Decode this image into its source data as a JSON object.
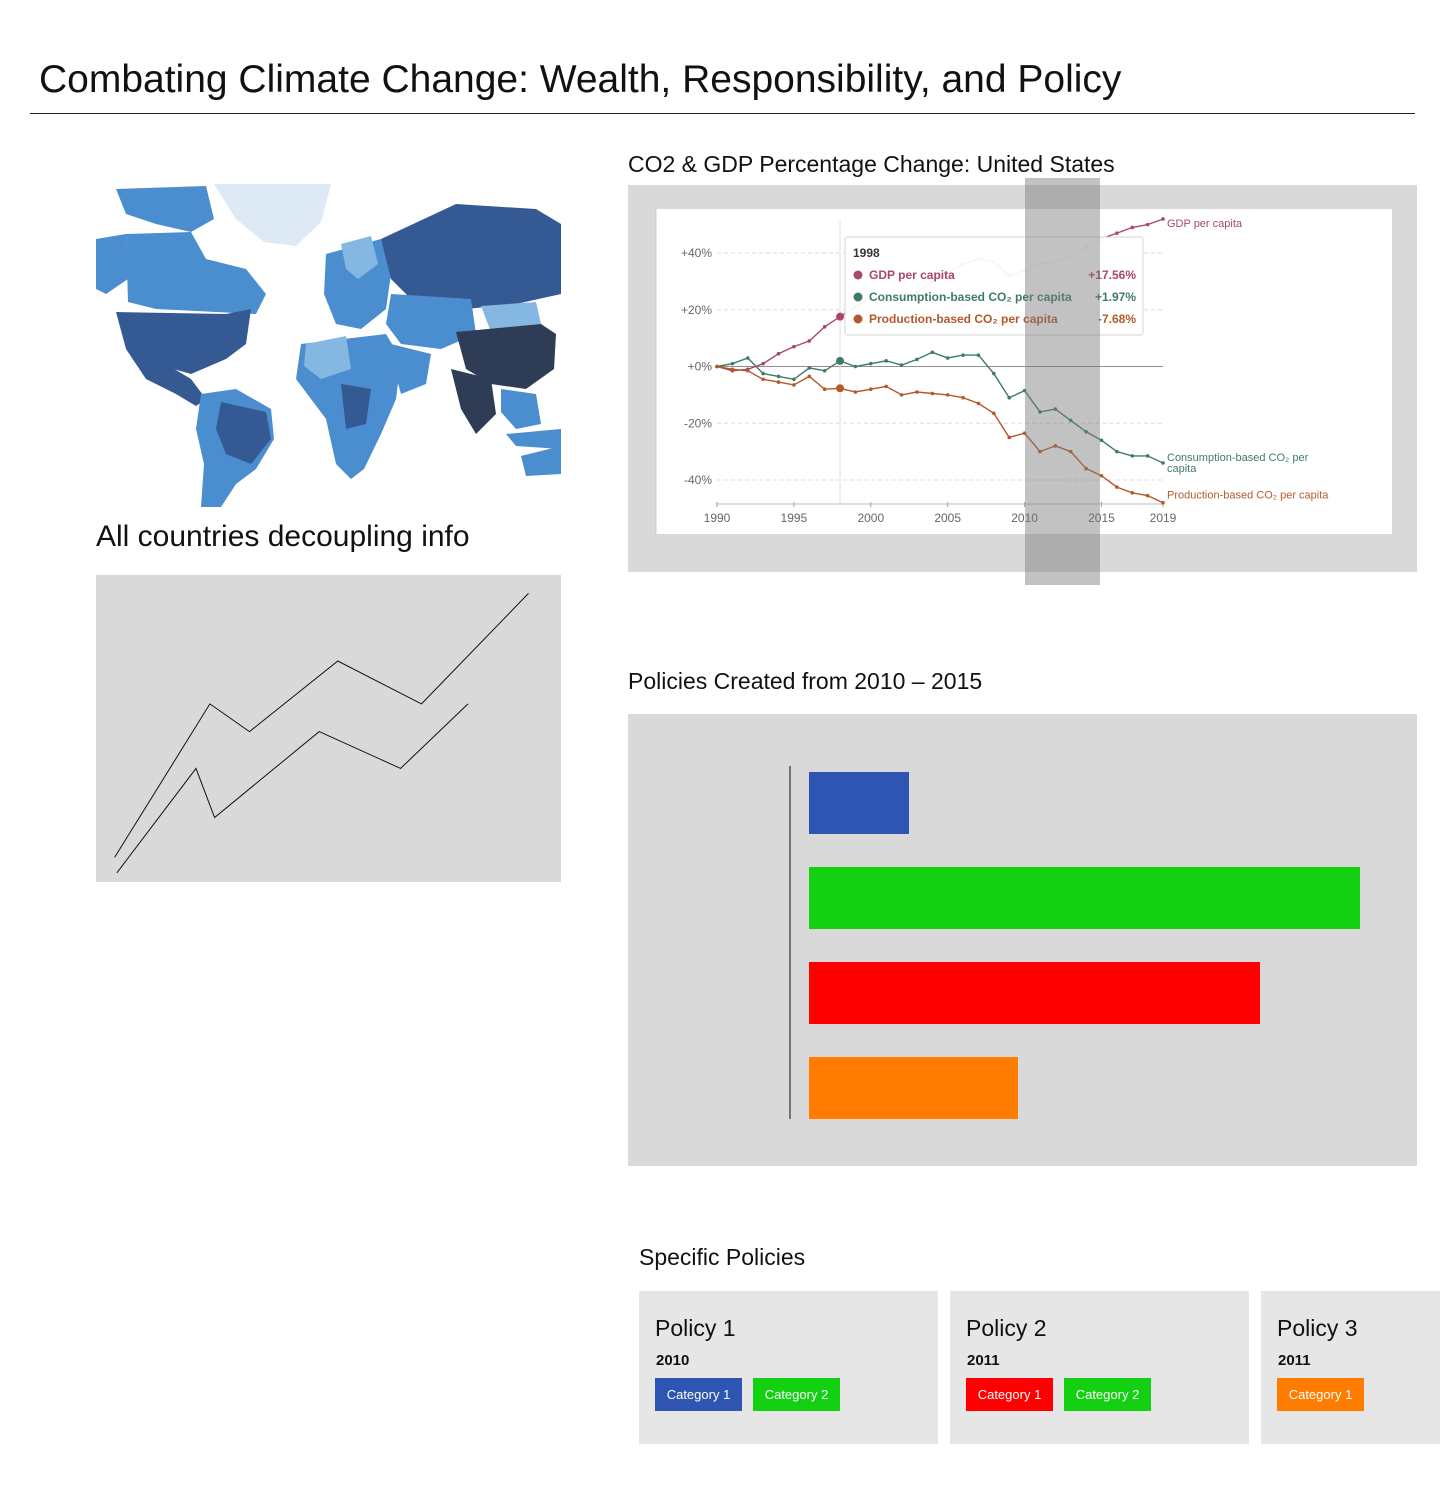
{
  "page": {
    "title": "Combating Climate Change:  Wealth, Responsibility, and Policy"
  },
  "map": {
    "colors": {
      "lightest": "#dde9f5",
      "light": "#84b8e3",
      "mid": "#4b8ed0",
      "dark": "#355a93",
      "darkest": "#2f3c55"
    }
  },
  "decoupling": {
    "title": "All countries decoupling info"
  },
  "co2_chart": {
    "title": "CO2 & GDP Percentage Change: United States",
    "tooltip": {
      "year": "1998",
      "rows": [
        {
          "label": "GDP per capita",
          "value": "+17.56%"
        },
        {
          "label": "Consumption-based CO₂ per capita",
          "value": "+1.97%"
        },
        {
          "label": "Production-based CO₂ per capita",
          "value": "-7.68%"
        }
      ]
    },
    "end_labels": {
      "gdp": "GDP per capita",
      "consumption_line1": "Consumption-based CO₂ per",
      "consumption_line2": "capita",
      "production": "Production-based CO₂ per capita"
    }
  },
  "policies_chart": {
    "title": "Policies Created from 2010 – 2015"
  },
  "specific": {
    "title": "Specific Policies",
    "cards": [
      {
        "name": "Policy 1",
        "year": "2010",
        "chips": [
          "Category 1",
          "Category 2"
        ]
      },
      {
        "name": "Policy 2",
        "year": "2011",
        "chips": [
          "Category 1",
          "Category 2"
        ]
      },
      {
        "name": "Policy 3",
        "year": "2011",
        "chips": [
          "Category 1"
        ]
      }
    ]
  },
  "chart_data": [
    {
      "type": "line",
      "title": "CO2 & GDP Percentage Change: United States",
      "xlabel": "",
      "ylabel": "",
      "x_ticks": [
        "1990",
        "1995",
        "2000",
        "2005",
        "2010",
        "2015",
        "2019"
      ],
      "y_ticks": [
        "+40%",
        "+20%",
        "+0%",
        "-20%",
        "-40%"
      ],
      "ylim": [
        -50,
        52
      ],
      "xlim": [
        1990,
        2019
      ],
      "grid": true,
      "x": [
        1990,
        1991,
        1992,
        1993,
        1994,
        1995,
        1996,
        1997,
        1998,
        1999,
        2000,
        2001,
        2002,
        2003,
        2004,
        2005,
        2006,
        2007,
        2008,
        2009,
        2010,
        2011,
        2012,
        2013,
        2014,
        2015,
        2016,
        2017,
        2018,
        2019
      ],
      "series": [
        {
          "name": "GDP per capita",
          "color": "#a94863",
          "values": [
            0,
            -1.5,
            -1,
            1,
            4.5,
            7,
            9,
            14,
            17.56,
            21,
            24,
            23.5,
            24,
            26,
            30,
            33,
            36,
            38,
            37,
            32,
            34,
            36,
            37,
            39,
            42,
            45,
            47,
            49,
            50,
            52
          ]
        },
        {
          "name": "Consumption-based CO₂ per capita",
          "color": "#3f7b68",
          "values": [
            0,
            1,
            3,
            -2.5,
            -3.5,
            -4.5,
            -0.5,
            -1.5,
            1.97,
            0,
            1,
            2,
            0.5,
            2.5,
            5,
            3,
            4,
            4,
            -2.5,
            -11,
            -8.5,
            -16,
            -15,
            -19,
            -23,
            -26,
            -30,
            -31.5,
            -31.5,
            -34
          ]
        },
        {
          "name": "Production-based CO₂ per capita",
          "color": "#b35a2a",
          "values": [
            0,
            -1,
            -1.5,
            -4.5,
            -5.5,
            -6.5,
            -3.5,
            -8,
            -7.68,
            -9,
            -8,
            -7,
            -10,
            -9,
            -9.5,
            -10,
            -11,
            -13,
            -16.5,
            -25,
            -23.5,
            -30,
            -28,
            -30,
            -36,
            -38.5,
            -42.5,
            -44.5,
            -45.5,
            -48
          ]
        }
      ],
      "highlight": {
        "x_from": 2010,
        "x_to": 2015
      },
      "tooltip_year": 1998
    },
    {
      "type": "bar",
      "title": "Policies Created from 2010 – 2015",
      "orientation": "horizontal",
      "categories": [
        "",
        "",
        "",
        ""
      ],
      "values": [
        100,
        551,
        451,
        209
      ],
      "colors": [
        "#2f55b2",
        "#13d013",
        "#ff0000",
        "#ff7c00"
      ]
    }
  ],
  "sketch": {
    "lines": [
      [
        [
          0.04,
          0.92
        ],
        [
          0.245,
          0.42
        ],
        [
          0.33,
          0.51
        ],
        [
          0.52,
          0.28
        ],
        [
          0.7,
          0.42
        ],
        [
          0.93,
          0.06
        ]
      ],
      [
        [
          0.045,
          0.97
        ],
        [
          0.215,
          0.63
        ],
        [
          0.255,
          0.79
        ],
        [
          0.48,
          0.51
        ],
        [
          0.655,
          0.63
        ],
        [
          0.8,
          0.42
        ]
      ]
    ]
  }
}
